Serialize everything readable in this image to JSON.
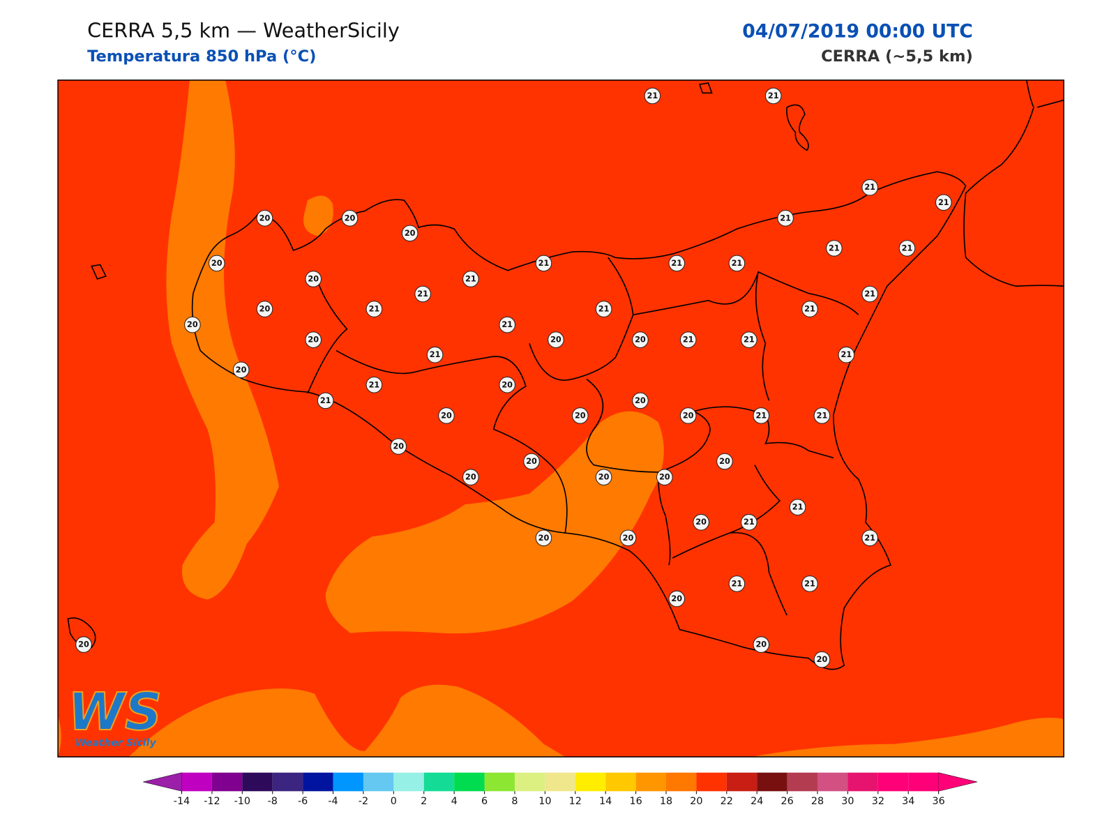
{
  "header": {
    "title": "CERRA 5,5 km — WeatherSicily",
    "subtitle": "Temperatura 850 hPa (°C)",
    "datetime": "04/07/2019 00:00 UTC",
    "model": "CERRA (~5,5 km)"
  },
  "logo": {
    "mark": "WS",
    "text": "Weather Sicily"
  },
  "background_color": "#ff3300",
  "contour_color": "#ff7a00",
  "stations": [
    21,
    21,
    21,
    21,
    20,
    20,
    20,
    21,
    21,
    21,
    20,
    21,
    21,
    21,
    20,
    21,
    21,
    21,
    20,
    21,
    21,
    21,
    20,
    21,
    20,
    20,
    20,
    21,
    21,
    21,
    21,
    20,
    21,
    20,
    21,
    20,
    20,
    20,
    20,
    21,
    21,
    20,
    20,
    20,
    20,
    20,
    20,
    21,
    20,
    21,
    20,
    20,
    21,
    21,
    21,
    20,
    20,
    20,
    20
  ],
  "colorbar": {
    "ticks": [
      -14,
      -12,
      -10,
      -8,
      -6,
      -4,
      -2,
      0,
      2,
      4,
      6,
      8,
      10,
      12,
      14,
      16,
      18,
      20,
      22,
      24,
      26,
      28,
      30,
      32,
      34,
      36
    ],
    "under_color": "#9b1fa8",
    "over_color": "#ff0078",
    "colors": [
      "#c000c0",
      "#800090",
      "#2e0a5a",
      "#3c2580",
      "#0014a0",
      "#0096ff",
      "#64c8f0",
      "#96f0e6",
      "#14dc96",
      "#00dc50",
      "#8ce632",
      "#dcf082",
      "#f0e68c",
      "#ffee00",
      "#ffc800",
      "#ff9600",
      "#ff7800",
      "#ff3200",
      "#c81e14",
      "#781010",
      "#b43c50",
      "#d25082",
      "#e6146e",
      "#ff0078",
      "#ff0078"
    ]
  }
}
